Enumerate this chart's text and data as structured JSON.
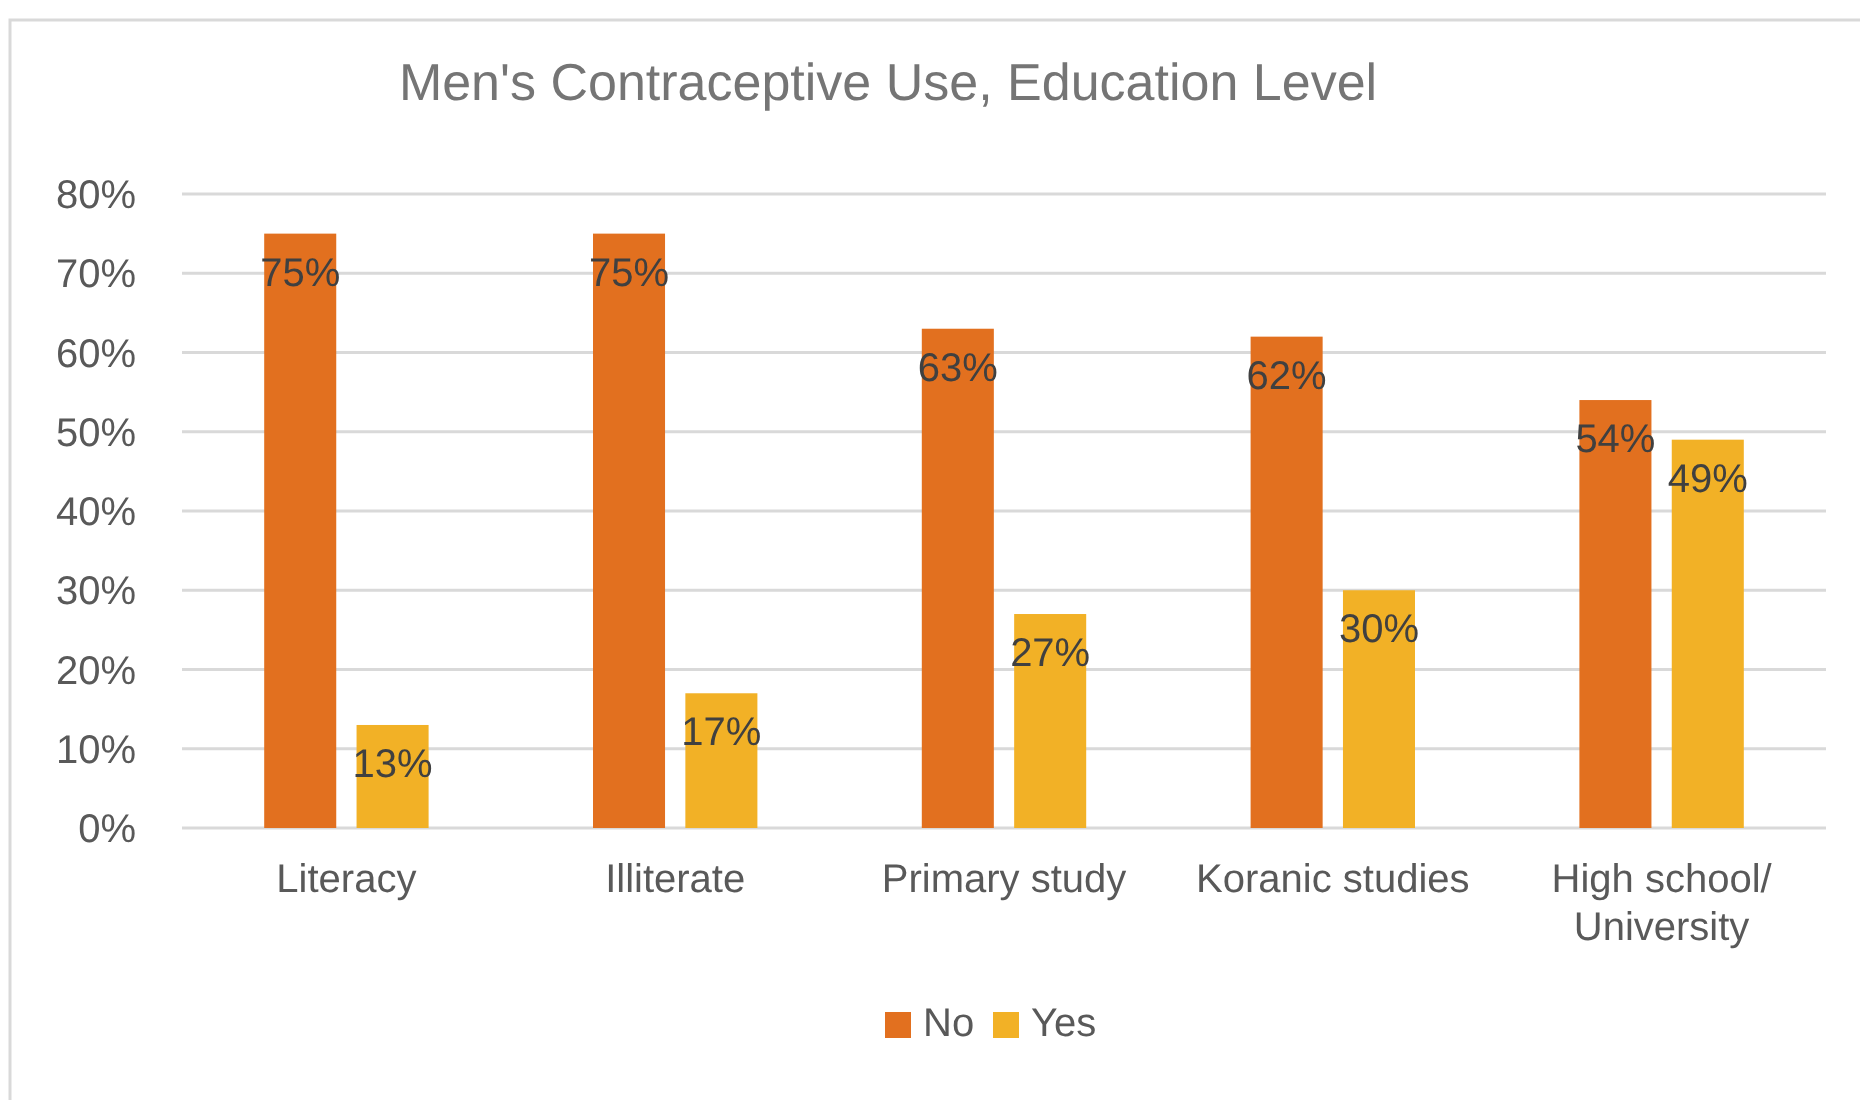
{
  "chart_data": {
    "type": "bar",
    "title": "Men's Contraceptive Use, Education Level",
    "categories": [
      "Literacy",
      "Illiterate",
      "Primary study",
      "Koranic studies",
      "High school/ University"
    ],
    "series": [
      {
        "name": "No",
        "color": "#e2701f",
        "values": [
          75,
          75,
          63,
          62,
          54
        ],
        "value_labels": [
          "75%",
          "75%",
          "63%",
          "62%",
          "54%"
        ]
      },
      {
        "name": "Yes",
        "color": "#f2b126",
        "values": [
          13,
          17,
          27,
          30,
          49
        ],
        "value_labels": [
          "13%",
          "17%",
          "27%",
          "30%",
          "49%"
        ]
      }
    ],
    "ylim": [
      0,
      80
    ],
    "yticks": [
      {
        "value": 0,
        "label": "0%"
      },
      {
        "value": 10,
        "label": "10%"
      },
      {
        "value": 20,
        "label": "20%"
      },
      {
        "value": 30,
        "label": "30%"
      },
      {
        "value": 40,
        "label": "40%"
      },
      {
        "value": 50,
        "label": "50%"
      },
      {
        "value": 60,
        "label": "60%"
      },
      {
        "value": 70,
        "label": "70%"
      },
      {
        "value": 80,
        "label": "80%"
      }
    ],
    "grid": "y",
    "legend": "bottom"
  }
}
